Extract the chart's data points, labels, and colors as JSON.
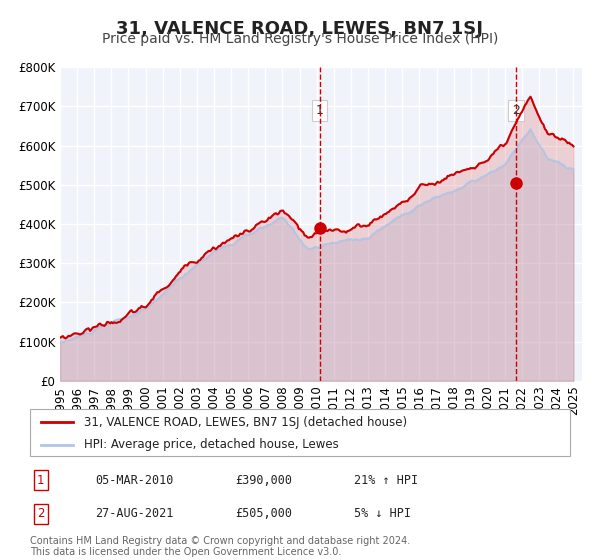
{
  "title": "31, VALENCE ROAD, LEWES, BN7 1SJ",
  "subtitle": "Price paid vs. HM Land Registry's House Price Index (HPI)",
  "ylabel": "",
  "xlabel": "",
  "ylim": [
    0,
    800000
  ],
  "yticks": [
    0,
    100000,
    200000,
    300000,
    400000,
    500000,
    600000,
    700000,
    800000
  ],
  "ytick_labels": [
    "£0",
    "£100K",
    "£200K",
    "£300K",
    "£400K",
    "£500K",
    "£600K",
    "£700K",
    "£800K"
  ],
  "xlim_start": 1995.0,
  "xlim_end": 2025.5,
  "xtick_years": [
    1995,
    1996,
    1997,
    1998,
    1999,
    2000,
    2001,
    2002,
    2003,
    2004,
    2005,
    2006,
    2007,
    2008,
    2009,
    2010,
    2011,
    2012,
    2013,
    2014,
    2015,
    2016,
    2017,
    2018,
    2019,
    2020,
    2021,
    2022,
    2023,
    2024,
    2025
  ],
  "hpi_color": "#aec6e8",
  "price_color": "#cc0000",
  "bg_color": "#f0f4fa",
  "plot_bg": "#f0f4fa",
  "grid_color": "#ffffff",
  "marker1_date": 2010.17,
  "marker1_price": 390000,
  "marker2_date": 2021.65,
  "marker2_price": 505000,
  "vline1_x": 2010.17,
  "vline2_x": 2021.65,
  "legend_label_price": "31, VALENCE ROAD, LEWES, BN7 1SJ (detached house)",
  "legend_label_hpi": "HPI: Average price, detached house, Lewes",
  "annotation1_label": "1",
  "annotation2_label": "2",
  "table_rows": [
    {
      "num": "1",
      "date": "05-MAR-2010",
      "price": "£390,000",
      "hpi": "21% ↑ HPI"
    },
    {
      "num": "2",
      "date": "27-AUG-2021",
      "price": "£505,000",
      "hpi": "5% ↓ HPI"
    }
  ],
  "footer": "Contains HM Land Registry data © Crown copyright and database right 2024.\nThis data is licensed under the Open Government Licence v3.0.",
  "title_fontsize": 13,
  "subtitle_fontsize": 10,
  "tick_fontsize": 8.5,
  "legend_fontsize": 8.5,
  "table_fontsize": 8.5,
  "footer_fontsize": 7
}
